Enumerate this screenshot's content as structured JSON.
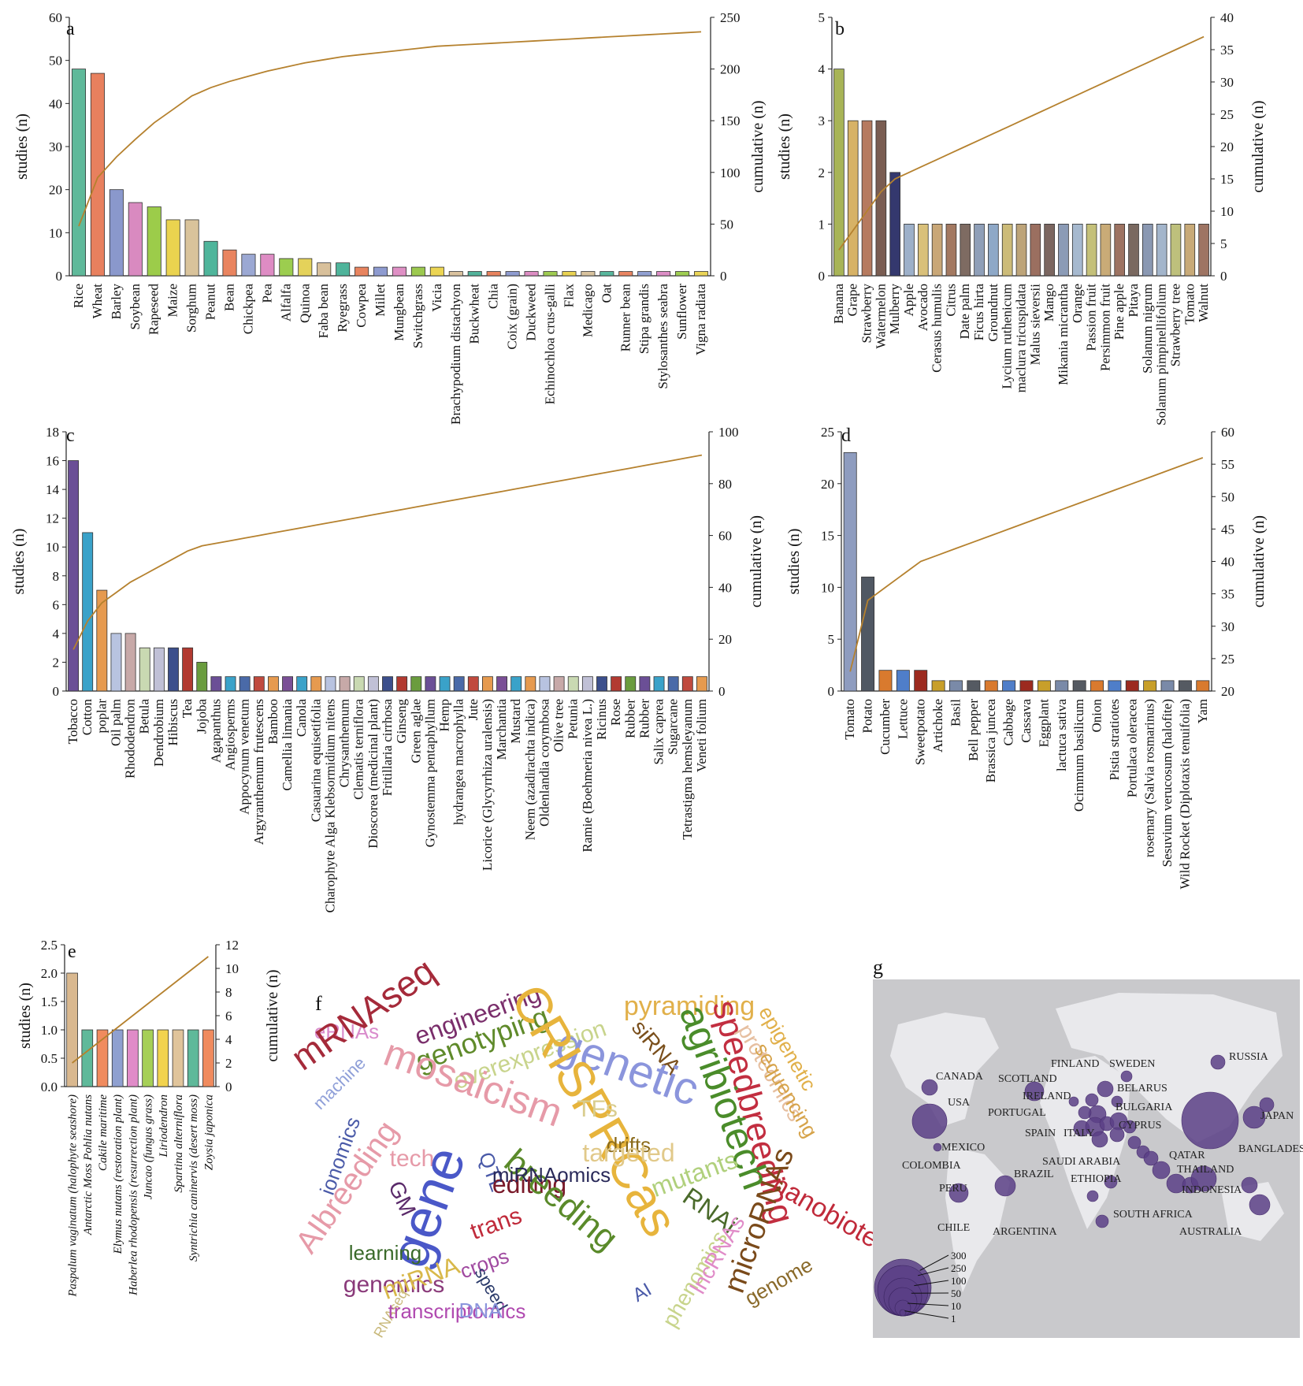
{
  "panel_labels": {
    "a": "a",
    "b": "b",
    "c": "c",
    "d": "d",
    "e": "e",
    "f": "f",
    "g": "g"
  },
  "colors": {
    "cumulative_line": "#b5812e",
    "bar_outline": "#333333",
    "map_background": "#c9c9cc",
    "map_land": "#e9e9ec",
    "bubble": "#5a3f86"
  },
  "chart_data": [
    {
      "id": "a",
      "type": "bar",
      "xlabel": "",
      "ylabel": "studies (n)",
      "y2label": "cumulative (n)",
      "ylim": [
        0,
        60
      ],
      "yticks": [
        0,
        10,
        20,
        30,
        40,
        50,
        60
      ],
      "y2lim": [
        0,
        250
      ],
      "y2ticks": [
        0,
        50,
        100,
        150,
        200,
        250
      ],
      "categories": [
        "Rice",
        "Wheat",
        "Barley",
        "Soybean",
        "Rapeseed",
        "Maize",
        "Sorghum",
        "Peanut",
        "Bean",
        "Chickpea",
        "Pea",
        "Alfalfa",
        "Quinoa",
        "Faba bean",
        "Ryegrass",
        "Cowpea",
        "Millet",
        "Mungbean",
        "Switchgrass",
        "Vicia",
        "Brachypodium distachyon",
        "Buckwheat",
        "Chia",
        "Coix (grain)",
        "Duckweed",
        "Echinochloa crus-galli",
        "Flax",
        "Medicago",
        "Oat",
        "Runner bean",
        "Stipa grandis",
        "Stylosanthes seabra",
        "Sunflower",
        "Vigna radiata"
      ],
      "values": [
        48,
        47,
        20,
        17,
        16,
        13,
        13,
        8,
        6,
        5,
        5,
        4,
        4,
        3,
        3,
        2,
        2,
        2,
        2,
        2,
        1,
        1,
        1,
        1,
        1,
        1,
        1,
        1,
        1,
        1,
        1,
        1,
        1,
        1
      ],
      "cumulative": [
        48,
        95,
        115,
        132,
        148,
        161,
        174,
        182,
        188,
        193,
        198,
        202,
        206,
        209,
        212,
        214,
        216,
        218,
        220,
        222,
        223,
        224,
        225,
        226,
        227,
        228,
        229,
        230,
        231,
        232,
        233,
        234,
        235,
        236
      ],
      "colors": [
        "#5fb99a",
        "#e8805e",
        "#8a98cc",
        "#d98ac0",
        "#9ccc4a",
        "#ead34f",
        "#d9c39b",
        "#4fb59b",
        "#e9845f",
        "#9ba8d3",
        "#de8cc4",
        "#9ccd4f",
        "#e4d25a",
        "#d8c09b",
        "#4fb49b",
        "#e8845f",
        "#8e9bd0",
        "#df90c5",
        "#9cc94f",
        "#ecd553",
        "#dac29e",
        "#52b39b",
        "#e8835e",
        "#8f9cd0",
        "#dd8dc3",
        "#9fcc51",
        "#ead352",
        "#d9c39e",
        "#58b79d",
        "#e98461",
        "#91a0d2",
        "#dd8ec6",
        "#9fce52",
        "#ebd557"
      ]
    },
    {
      "id": "b",
      "type": "bar",
      "xlabel": "",
      "ylabel": "studies (n)",
      "y2label": "cumulative (n)",
      "ylim": [
        0,
        5
      ],
      "yticks": [
        0,
        1,
        2,
        3,
        4,
        5
      ],
      "y2lim": [
        0,
        40
      ],
      "y2ticks": [
        0,
        5,
        10,
        15,
        20,
        25,
        30,
        35,
        40
      ],
      "categories": [
        "Banana",
        "Grape",
        "Strawberry",
        "Watermelon",
        "Mulberry",
        "Apple",
        "Avocado",
        "Cerasus humulis",
        "Citrus",
        "Date palm",
        "Ficus hirta",
        "Groundnut",
        "Lycium ruthenicum",
        "maclura tricuspidata",
        "Malus sieversii",
        "Mango",
        "Mikania micrantha",
        "Orange",
        "Passion fruit",
        "Persimmon fruit",
        "Pine apple",
        "Pitaya",
        "Solanum nigrum",
        "Solanum pimpinellifolium",
        "Strawberry tree",
        "Tomato",
        "Walnut"
      ],
      "values": [
        4,
        3,
        3,
        3,
        2,
        1,
        1,
        1,
        1,
        1,
        1,
        1,
        1,
        1,
        1,
        1,
        1,
        1,
        1,
        1,
        1,
        1,
        1,
        1,
        1,
        1,
        1
      ],
      "cumulative": [
        4,
        7,
        10,
        13,
        15,
        16,
        17,
        18,
        19,
        20,
        21,
        22,
        23,
        24,
        25,
        26,
        27,
        28,
        29,
        30,
        31,
        32,
        33,
        34,
        35,
        36,
        37
      ],
      "colors": [
        "#a8b457",
        "#d7b266",
        "#b67a5f",
        "#7a5d52",
        "#34386e",
        "#9db0c9",
        "#d9c07a",
        "#c9a777",
        "#a37961",
        "#7e6b62",
        "#8f9fb8",
        "#8ea8c7",
        "#ccbb78",
        "#bda479",
        "#9b6f60",
        "#7b6660",
        "#8b9bb6",
        "#a6b9cf",
        "#c4c079",
        "#c9ab77",
        "#9d7362",
        "#7a6960",
        "#8a98b2",
        "#a3b5cb",
        "#bec07c",
        "#c8aa78",
        "#9e7463"
      ]
    },
    {
      "id": "c",
      "type": "bar",
      "xlabel": "",
      "ylabel": "studies (n)",
      "y2label": "cumulative (n)",
      "ylim": [
        0,
        18
      ],
      "yticks": [
        0,
        2,
        4,
        6,
        8,
        10,
        12,
        14,
        16,
        18
      ],
      "y2lim": [
        0,
        100
      ],
      "y2ticks": [
        0,
        20,
        40,
        60,
        80,
        100
      ],
      "categories": [
        "Tobacco",
        "Cotton",
        "poplar",
        "Oil palm",
        "Rhododendron",
        "Betula",
        "Dendrobium",
        "Hibiscus",
        "Tea",
        "Jojoba",
        "Agapanthus",
        "Angiosperms",
        "Appocynum venetum",
        "Argyranthemum frutescens",
        "Bamboo",
        "Camellia limania",
        "Canola",
        "Casuarina equisetifolia",
        "Charophyte Alga Klebsormidium nitens",
        "Chrysanthemum",
        "Clematis terniflora",
        "Dioscorea (medicinal plant)",
        "Fritillaria cirrhosa",
        "Ginseng",
        "Green aglae",
        "Gynostemma pentaphyllum",
        "Hemp",
        "hydrangea macrophylla",
        "Jute",
        "Licorice (Glycyrrhiza uralensis)",
        "Marchantia",
        "Mustard",
        "Neem (azadirachta indica)",
        "Oldenlandia corymbosa",
        "Olive tree",
        "Petunia",
        "Ramie (Boehmeria nivea L.)",
        "Ricinus",
        "Rose",
        "Rubber",
        "Rubber",
        "Salix caprea",
        "Sugarcane",
        "Tetrastigma hemsleyanum",
        "Veneti folium"
      ],
      "values": [
        16,
        11,
        7,
        4,
        4,
        3,
        3,
        3,
        3,
        2,
        1,
        1,
        1,
        1,
        1,
        1,
        1,
        1,
        1,
        1,
        1,
        1,
        1,
        1,
        1,
        1,
        1,
        1,
        1,
        1,
        1,
        1,
        1,
        1,
        1,
        1,
        1,
        1,
        1,
        1,
        1,
        1,
        1,
        1,
        1
      ],
      "cumulative": [
        16,
        27,
        34,
        38,
        42,
        45,
        48,
        51,
        54,
        56,
        57,
        58,
        59,
        60,
        61,
        62,
        63,
        64,
        65,
        66,
        67,
        68,
        69,
        70,
        71,
        72,
        73,
        74,
        75,
        76,
        77,
        78,
        79,
        80,
        81,
        82,
        83,
        84,
        85,
        86,
        87,
        88,
        89,
        90,
        91
      ],
      "colors": [
        "#6b4f96",
        "#3aa2c9",
        "#e69a4f",
        "#b8c3e0",
        "#c7a9a8",
        "#c9d9b2",
        "#c0c0d6",
        "#3c4f8c",
        "#b23a31",
        "#6a9c3e",
        "#6b4f96",
        "#3aa2c9",
        "#4a6aa8",
        "#c04a3e",
        "#e69a4f",
        "#7a4f96",
        "#3aa2c9",
        "#e69a4f",
        "#b8c3e0",
        "#c7a9a8",
        "#c9d9b2",
        "#c0c0d6",
        "#3c4f8c",
        "#b23a31",
        "#6a9c3e",
        "#6b4f96",
        "#3aa2c9",
        "#4a6aa8",
        "#c04a3e",
        "#e69a4f",
        "#7a4f96",
        "#3aa2c9",
        "#e69a4f",
        "#b8c3e0",
        "#c7a9a8",
        "#c9d9b2",
        "#c0c0d6",
        "#3c4f8c",
        "#b23a31",
        "#6a9c3e",
        "#6b4f96",
        "#3aa2c9",
        "#4a6aa8",
        "#c04a3e",
        "#e69a4f"
      ]
    },
    {
      "id": "d",
      "type": "bar",
      "xlabel": "",
      "ylabel": "studies (n)",
      "y2label": "cumulative (n)",
      "ylim": [
        0,
        25
      ],
      "yticks": [
        0,
        5,
        10,
        15,
        20,
        25
      ],
      "y2lim": [
        20,
        60
      ],
      "y2ticks": [
        20,
        25,
        30,
        35,
        40,
        45,
        50,
        55,
        60
      ],
      "categories": [
        "Tomato",
        "Potato",
        "Cucumber",
        "Lettuce",
        "Sweetpotato",
        "Artichoke",
        "Basil",
        "Bell pepper",
        "Brassica juncea",
        "Cabbage",
        "Cassava",
        "Eggplant",
        "lactuca sativa",
        "Ocimmum basilicum",
        "Onion",
        "Pistia stratiotes",
        "Portulaca oleracea",
        "rosemary (Salvia rosmarinus)",
        "Sesuvium verucosum (halofite)",
        "Wild Rocket (Diplotaxis tenuifolia)",
        "Yam"
      ],
      "values": [
        23,
        11,
        2,
        2,
        2,
        1,
        1,
        1,
        1,
        1,
        1,
        1,
        1,
        1,
        1,
        1,
        1,
        1,
        1,
        1,
        1
      ],
      "cumulative": [
        23,
        34,
        36,
        38,
        40,
        41,
        42,
        43,
        44,
        45,
        46,
        47,
        48,
        49,
        50,
        51,
        52,
        53,
        54,
        55,
        56
      ],
      "colors": [
        "#8e9cbf",
        "#505863",
        "#d97a2e",
        "#4f7ec9",
        "#9c2a1f",
        "#c89f2a",
        "#7a8aa8",
        "#555a62",
        "#d97a2e",
        "#4f7ec9",
        "#9c2a1f",
        "#c89f2a",
        "#7a8aa8",
        "#555a62",
        "#d97a2e",
        "#4f7ec9",
        "#9c2a1f",
        "#c89f2a",
        "#7a8aa8",
        "#555a62",
        "#d97a2e"
      ]
    },
    {
      "id": "e",
      "type": "bar",
      "xlabel": "",
      "ylabel": "studies (n)",
      "y2label": "cumulative (n)",
      "ylim": [
        0,
        2.5
      ],
      "yticks": [
        "0.0",
        "0.5",
        "1.0",
        "1.5",
        "2.0",
        "2.5"
      ],
      "y2lim": [
        0,
        12
      ],
      "y2ticks": [
        0,
        2,
        4,
        6,
        8,
        10,
        12
      ],
      "categories": [
        "Paspalum vaginatum (halophyte seashore)",
        "Antarctic Moss Pohlia nutans",
        "Cakile maritime",
        "Elymus nutans (restoration plant)",
        "Haberlea rhodopensis (resurrection plant)",
        "Juncao (fungus grass)",
        "Liriodendron",
        "Spartina alterniflora",
        "Syntrichia caninervis (desert moss)",
        "Zoysia japonica"
      ],
      "values": [
        2,
        1,
        1,
        1,
        1,
        1,
        1,
        1,
        1,
        1
      ],
      "cumulative": [
        2,
        3,
        4,
        5,
        6,
        7,
        8,
        9,
        10,
        11
      ],
      "colors": [
        "#d9b88f",
        "#5fb99a",
        "#f08b5e",
        "#8fa0d0",
        "#e08bc8",
        "#a6cf57",
        "#f2d34e",
        "#e0c49b",
        "#5fb99a",
        "#f08b5e"
      ]
    }
  ],
  "wordcloud": [
    {
      "text": "eRNAs",
      "color": "#d98bcc",
      "size": 26,
      "rot": 0
    },
    {
      "text": "mRNAseq",
      "color": "#a52a3a",
      "size": 46,
      "rot": -35
    },
    {
      "text": "engineering",
      "color": "#7a2e6b",
      "size": 32,
      "rot": -20
    },
    {
      "text": "genotyping",
      "color": "#5f8a2a",
      "size": 36,
      "rot": -20
    },
    {
      "text": "machine",
      "color": "#8f9fd8",
      "size": 22,
      "rot": -45
    },
    {
      "text": "overexpression",
      "color": "#c8d48c",
      "size": 30,
      "rot": -20
    },
    {
      "text": "pyramiding",
      "color": "#e1b04a",
      "size": 34,
      "rot": 0
    },
    {
      "text": "epigenetic",
      "color": "#e1b04a",
      "size": 26,
      "rot": 60
    },
    {
      "text": "siRNA",
      "color": "#7a4f1c",
      "size": 28,
      "rot": 50
    },
    {
      "text": "speedbreeding",
      "color": "#c22e40",
      "size": 44,
      "rot": 75
    },
    {
      "text": "genetic",
      "color": "#8b95dc",
      "size": 58,
      "rot": 20
    },
    {
      "text": "agribiotech",
      "color": "#4a8c2a",
      "size": 50,
      "rot": 70
    },
    {
      "text": "proteomics",
      "color": "#e6bfa0",
      "size": 28,
      "rot": 60
    },
    {
      "text": "sequencing",
      "color": "#d6a34a",
      "size": 26,
      "rot": 60
    },
    {
      "text": "mosaicism",
      "color": "#e69aa8",
      "size": 50,
      "rot": 20
    },
    {
      "text": "CRISPRCas",
      "color": "#e7b43c",
      "size": 64,
      "rot": 60
    },
    {
      "text": "TFs",
      "color": "#d9cd8f",
      "size": 30,
      "rot": 0
    },
    {
      "text": "drifts",
      "color": "#8a6a1a",
      "size": 26,
      "rot": 0
    },
    {
      "text": "targeted",
      "color": "#e1c98a",
      "size": 32,
      "rot": 0
    },
    {
      "text": "AIbreeding",
      "color": "#e69aa8",
      "size": 40,
      "rot": -55
    },
    {
      "text": "tech",
      "color": "#e69aa8",
      "size": 30,
      "rot": 0
    },
    {
      "text": "ionomics",
      "color": "#4a5aa8",
      "size": 26,
      "rot": -70
    },
    {
      "text": "QTL",
      "color": "#4a5aa8",
      "size": 26,
      "rot": 70
    },
    {
      "text": "editing",
      "color": "#7a1a2a",
      "size": 32,
      "rot": 0
    },
    {
      "text": "mutants",
      "color": "#b0d07c",
      "size": 32,
      "rot": -20
    },
    {
      "text": "GM",
      "color": "#5a2a6a",
      "size": 28,
      "rot": 65
    },
    {
      "text": "gene",
      "color": "#4a58c8",
      "size": 70,
      "rot": -70
    },
    {
      "text": "trans",
      "color": "#c02a3a",
      "size": 30,
      "rot": -20
    },
    {
      "text": "breeding",
      "color": "#5a8a2a",
      "size": 44,
      "rot": 40
    },
    {
      "text": "RNAi",
      "color": "#4a6a2a",
      "size": 32,
      "rot": 35
    },
    {
      "text": "microRNAs",
      "color": "#7a4a1a",
      "size": 38,
      "rot": -70
    },
    {
      "text": "nanobiotech",
      "color": "#c02a3a",
      "size": 34,
      "rot": 30
    },
    {
      "text": "learning",
      "color": "#3a6a2a",
      "size": 26,
      "rot": 0
    },
    {
      "text": "genomics",
      "color": "#8a3a7a",
      "size": 30,
      "rot": 0
    },
    {
      "text": "miRNA",
      "color": "#d8b84a",
      "size": 32,
      "rot": -20
    },
    {
      "text": "crops",
      "color": "#a04aa0",
      "size": 26,
      "rot": -20
    },
    {
      "text": "AI",
      "color": "#4a5aa8",
      "size": 24,
      "rot": -30
    },
    {
      "text": "phenomics",
      "color": "#c8d48c",
      "size": 28,
      "rot": -60
    },
    {
      "text": "lncRNAs",
      "color": "#e08bc8",
      "size": 28,
      "rot": -60
    },
    {
      "text": "genome",
      "color": "#8a6a2a",
      "size": 26,
      "rot": -30
    },
    {
      "text": "RNAseq",
      "color": "#c8b87a",
      "size": 18,
      "rot": -60
    },
    {
      "text": "speed",
      "color": "#2a3a6a",
      "size": 22,
      "rot": 60
    },
    {
      "text": "transcriptomics",
      "color": "#b04ab0",
      "size": 26,
      "rot": 0
    },
    {
      "text": "DNA",
      "color": "#8b95dc",
      "size": 26,
      "rot": 0
    },
    {
      "text": "miRNAomics",
      "color": "#2a2a5a",
      "size": 26,
      "rot": 0
    }
  ],
  "map": {
    "legend": [
      "300",
      "250",
      "100",
      "50",
      "10",
      "1"
    ],
    "countries": [
      {
        "name": "CANADA"
      },
      {
        "name": "USA"
      },
      {
        "name": "MEXICO"
      },
      {
        "name": "COLOMBIA"
      },
      {
        "name": "PERU"
      },
      {
        "name": "BRAZIL"
      },
      {
        "name": "CHILE"
      },
      {
        "name": "ARGENTINA"
      },
      {
        "name": "FINLAND"
      },
      {
        "name": "SWEDEN"
      },
      {
        "name": "SCOTLAND"
      },
      {
        "name": "IRELAND"
      },
      {
        "name": "BELARUS"
      },
      {
        "name": "PORTUGAL"
      },
      {
        "name": "BULGARIA"
      },
      {
        "name": "SPAIN"
      },
      {
        "name": "ITALY"
      },
      {
        "name": "CYPRUS"
      },
      {
        "name": "SAUDI ARABIA"
      },
      {
        "name": "QATAR"
      },
      {
        "name": "ETHIOPIA"
      },
      {
        "name": "SOUTH AFRICA"
      },
      {
        "name": "RUSSIA"
      },
      {
        "name": "JAPAN"
      },
      {
        "name": "BANGLADESH"
      },
      {
        "name": "THAILAND"
      },
      {
        "name": "INDONESIA"
      },
      {
        "name": "AUSTRALIA"
      }
    ]
  }
}
